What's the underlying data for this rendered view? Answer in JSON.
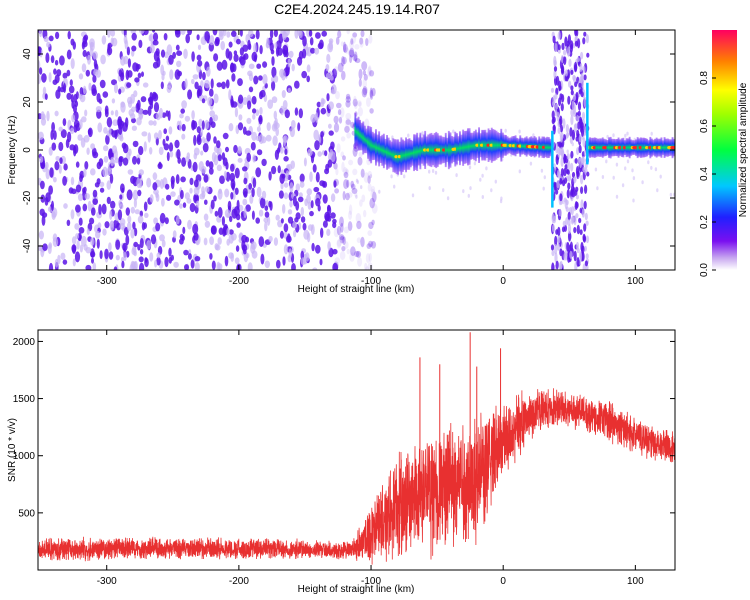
{
  "title": "C2E4.2024.245.19.14.R07",
  "colors": {
    "snr_line": "#e83030",
    "scatter_core": "#5a14e6",
    "scatter_light": "#c8b4f5"
  },
  "chart_data": [
    {
      "type": "heatmap",
      "title": "C2E4.2024.245.19.14.R07",
      "xlabel": "Height of straight line (km)",
      "ylabel": "Frequency (Hz)",
      "xlim": [
        -352,
        130
      ],
      "ylim": [
        -50,
        50
      ],
      "xticks": [
        -300,
        -200,
        -100,
        0,
        100
      ],
      "yticks": [
        -40,
        -20,
        0,
        20,
        40
      ],
      "colorbar": {
        "label": "Normalized spectral amplitude",
        "range": [
          0,
          1
        ],
        "ticks": [
          0.0,
          0.2,
          0.4,
          0.6,
          0.8
        ],
        "colormap": "rainbow (white-violet-blue-cyan-green-yellow-red)"
      },
      "features": {
        "noise_region_x": [
          -352,
          -112
        ],
        "narrow_band_center_freq": [
          {
            "x": -112,
            "f": 8
          },
          {
            "x": -100,
            "f": 2
          },
          {
            "x": -80,
            "f": -3
          },
          {
            "x": -60,
            "f": 0
          },
          {
            "x": -40,
            "f": 0
          },
          {
            "x": -20,
            "f": 2
          },
          {
            "x": 0,
            "f": 2
          },
          {
            "x": 35,
            "f": 1
          },
          {
            "x": 66,
            "f": 1
          },
          {
            "x": 100,
            "f": 1
          },
          {
            "x": 130,
            "f": 1
          }
        ],
        "noise_strip_x": [
          37,
          64
        ]
      }
    },
    {
      "type": "line",
      "xlabel": "Height of straight line (km)",
      "ylabel": "SNR (10 * v/v)",
      "xlim": [
        -352,
        130
      ],
      "ylim": [
        0,
        2100
      ],
      "xticks": [
        -300,
        -200,
        -100,
        0,
        100
      ],
      "yticks": [
        500,
        1000,
        1500,
        2000
      ],
      "envelope": [
        {
          "x": -352,
          "base": 180,
          "amp": 110
        },
        {
          "x": -250,
          "base": 190,
          "amp": 110
        },
        {
          "x": -150,
          "base": 180,
          "amp": 100
        },
        {
          "x": -115,
          "base": 170,
          "amp": 90
        },
        {
          "x": -100,
          "base": 320,
          "amp": 300
        },
        {
          "x": -80,
          "base": 550,
          "amp": 500
        },
        {
          "x": -60,
          "base": 650,
          "amp": 600
        },
        {
          "x": -40,
          "base": 750,
          "amp": 600
        },
        {
          "x": -20,
          "base": 800,
          "amp": 650
        },
        {
          "x": 0,
          "base": 1150,
          "amp": 400
        },
        {
          "x": 20,
          "base": 1350,
          "amp": 250
        },
        {
          "x": 40,
          "base": 1430,
          "amp": 180
        },
        {
          "x": 60,
          "base": 1380,
          "amp": 180
        },
        {
          "x": 80,
          "base": 1300,
          "amp": 200
        },
        {
          "x": 100,
          "base": 1180,
          "amp": 180
        },
        {
          "x": 130,
          "base": 1050,
          "amp": 180
        }
      ],
      "spikes": [
        {
          "x": -63,
          "y": 1860
        },
        {
          "x": -48,
          "y": 1800
        },
        {
          "x": -25,
          "y": 2080
        },
        {
          "x": -20,
          "y": 1780
        },
        {
          "x": -2,
          "y": 1940
        }
      ]
    }
  ]
}
